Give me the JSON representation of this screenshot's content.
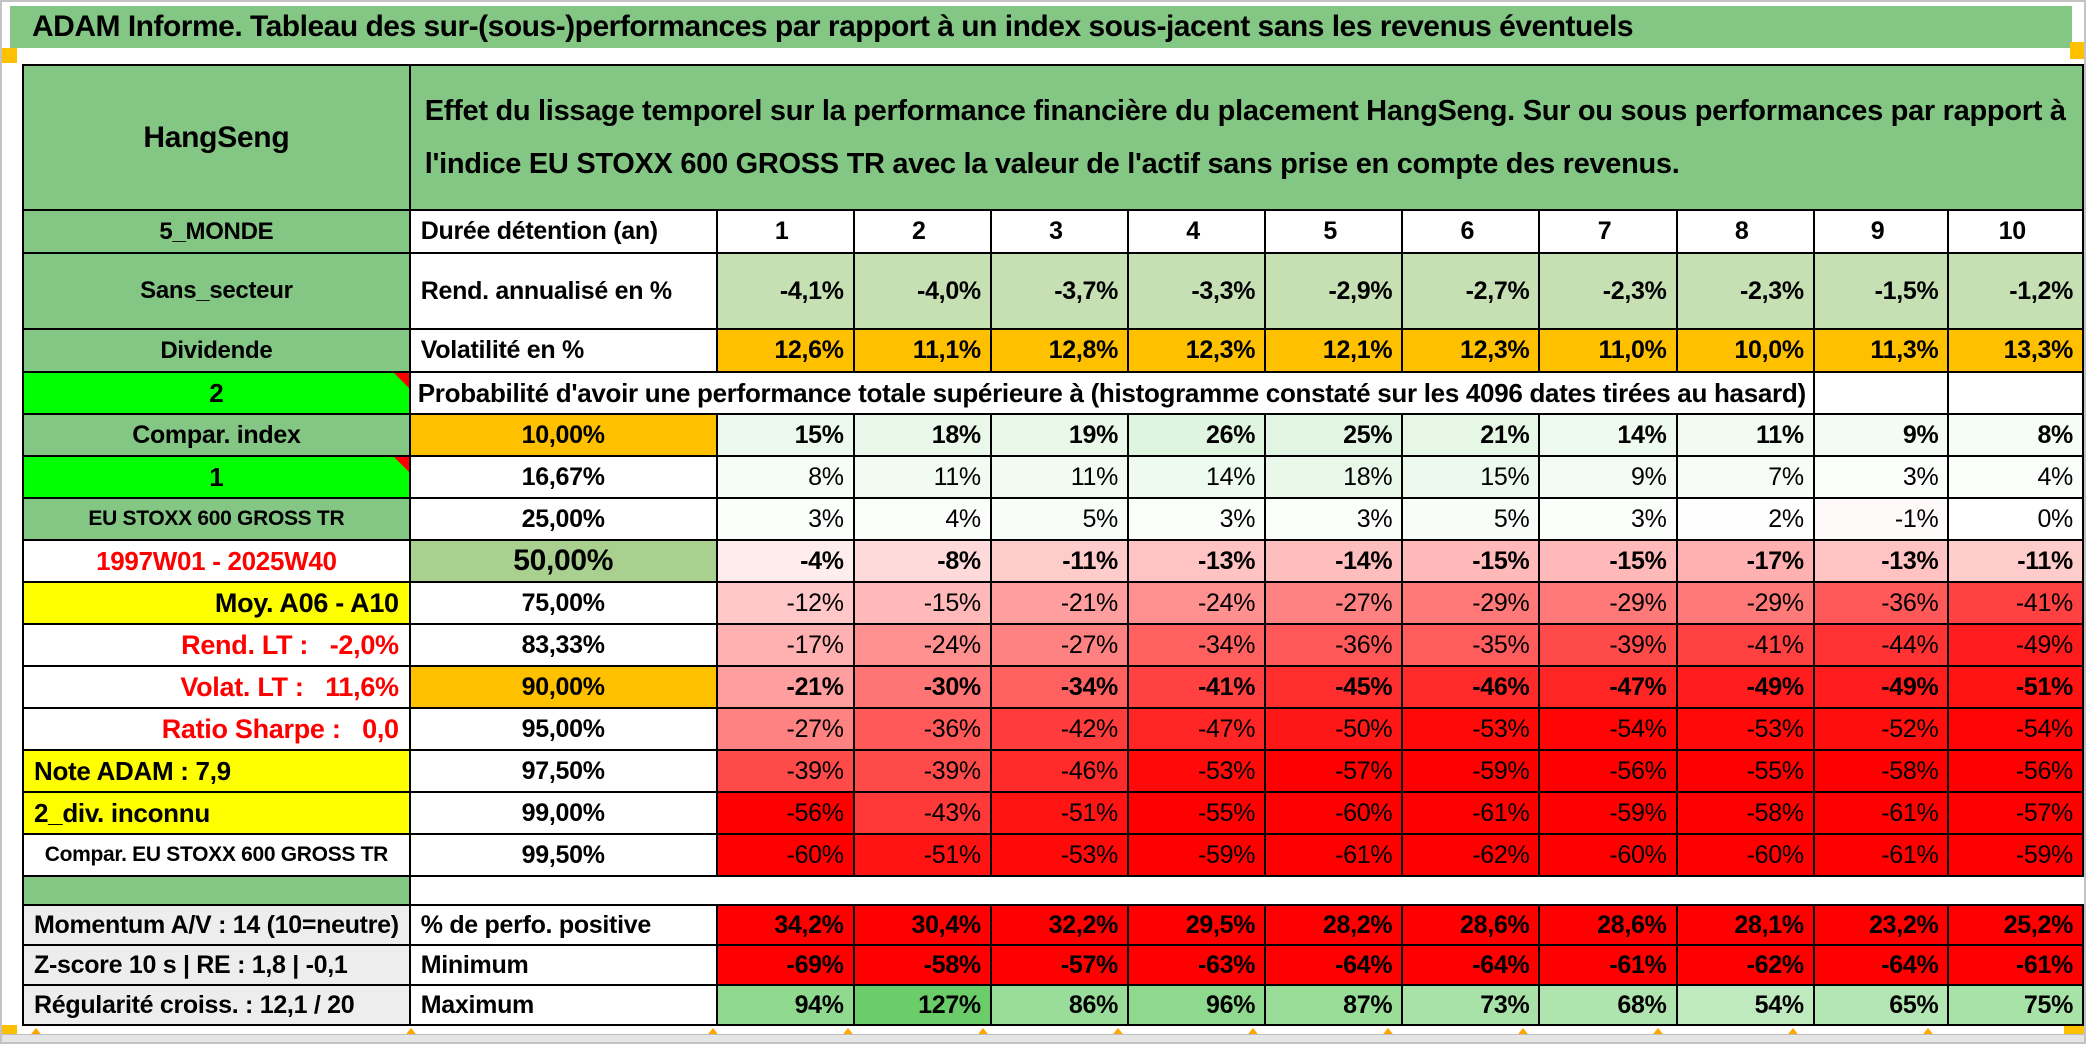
{
  "banner": {
    "title": "ADAM Informe. Tableau des sur-(sous-)performances par rapport à un index sous-jacent sans les revenus éventuels"
  },
  "header": {
    "asset": "HangSeng",
    "description": "Effet du lissage temporel sur la performance financière du placement HangSeng. Sur ou sous performances par rapport à l'indice EU STOXX 600 GROSS TR avec la valeur de l'actif sans prise en compte des revenus."
  },
  "probability_note": "Probabilité d'avoir une performance totale supérieure à (histogramme constaté sur les 4096 dates tirées au hasard)",
  "years": [
    "1",
    "2",
    "3",
    "4",
    "5",
    "6",
    "7",
    "8",
    "9",
    "10"
  ],
  "colors": {
    "band_green": "#84C784",
    "bright_green": "#00FF00",
    "mid_green": "#A9D08E",
    "light_green": "#C6E0B4",
    "orange": "#FFC000",
    "yellow": "#FFFF00",
    "gray_label": "#EDEDED",
    "red_text": "#FF0000",
    "heat_red": "#FF0000",
    "heat_green": "#66CC66"
  },
  "rows": [
    {
      "left": {
        "text": "5_MONDE",
        "bg": "#84C784",
        "size": 24
      },
      "label": {
        "text": "Durée détention (an)",
        "align": "left"
      },
      "type": "years"
    },
    {
      "left": {
        "text": "Sans_secteur",
        "bg": "#84C784",
        "size": 24
      },
      "label": {
        "text": "Rend. annualisé en %",
        "align": "left"
      },
      "type": "flat",
      "flat": "#C6E0B4",
      "bold": true,
      "values": [
        "-4,1%",
        "-4,0%",
        "-3,7%",
        "-3,3%",
        "-2,9%",
        "-2,7%",
        "-2,3%",
        "-2,3%",
        "-1,5%",
        "-1,2%"
      ]
    },
    {
      "left": {
        "text": "Dividende",
        "bg": "#84C784",
        "size": 24
      },
      "label": {
        "text": "Volatilité en %",
        "align": "left"
      },
      "type": "flat",
      "flat": "#FFC000",
      "bold": true,
      "values": [
        "12,6%",
        "11,1%",
        "12,8%",
        "12,3%",
        "12,1%",
        "12,3%",
        "11,0%",
        "10,0%",
        "11,3%",
        "13,3%"
      ]
    },
    {
      "left": {
        "text": "2",
        "bg": "#00FF00",
        "size": 26,
        "tri": true
      },
      "type": "note"
    },
    {
      "left": {
        "text": "Compar. index",
        "bg": "#84C784",
        "size": 25
      },
      "label": {
        "text": "10,00%",
        "bg": "#FFC000"
      },
      "type": "heat",
      "bold": true,
      "values": [
        "15%",
        "18%",
        "19%",
        "26%",
        "25%",
        "21%",
        "14%",
        "11%",
        "9%",
        "8%"
      ]
    },
    {
      "left": {
        "text": "1",
        "bg": "#00FF00",
        "size": 26,
        "tri": true
      },
      "label": {
        "text": "16,67%"
      },
      "type": "heat",
      "values": [
        "8%",
        "11%",
        "11%",
        "14%",
        "18%",
        "15%",
        "9%",
        "7%",
        "3%",
        "4%"
      ]
    },
    {
      "left": {
        "text": "EU STOXX 600 GROSS TR",
        "bg": "#84C784",
        "size": 21
      },
      "label": {
        "text": "25,00%"
      },
      "type": "heat",
      "values": [
        "3%",
        "4%",
        "5%",
        "3%",
        "3%",
        "5%",
        "3%",
        "2%",
        "-1%",
        "0%"
      ]
    },
    {
      "left": {
        "text": "1997W01 - 2025W40",
        "color": "#FF0000",
        "size": 26
      },
      "label": {
        "text": "50,00%",
        "bg": "#A9D08E",
        "size": 30
      },
      "type": "heat",
      "bold": true,
      "values": [
        "-4%",
        "-8%",
        "-11%",
        "-13%",
        "-14%",
        "-15%",
        "-15%",
        "-17%",
        "-13%",
        "-11%"
      ]
    },
    {
      "left": {
        "text": "Moy. A06 - A10",
        "bg": "#FFFF00",
        "align": "right",
        "size": 27
      },
      "label": {
        "text": "75,00%"
      },
      "type": "heat",
      "values": [
        "-12%",
        "-15%",
        "-21%",
        "-24%",
        "-27%",
        "-29%",
        "-29%",
        "-29%",
        "-36%",
        "-41%"
      ]
    },
    {
      "left": {
        "text": "Rend. LT :   -2,0%",
        "color": "#FF0000",
        "align": "right",
        "size": 27
      },
      "label": {
        "text": "83,33%"
      },
      "type": "heat",
      "values": [
        "-17%",
        "-24%",
        "-27%",
        "-34%",
        "-36%",
        "-35%",
        "-39%",
        "-41%",
        "-44%",
        "-49%"
      ]
    },
    {
      "left": {
        "text": "Volat. LT :   11,6%",
        "color": "#FF0000",
        "align": "right",
        "size": 27
      },
      "label": {
        "text": "90,00%",
        "bg": "#FFC000"
      },
      "type": "heat",
      "bold": true,
      "values": [
        "-21%",
        "-30%",
        "-34%",
        "-41%",
        "-45%",
        "-46%",
        "-47%",
        "-49%",
        "-49%",
        "-51%"
      ]
    },
    {
      "left": {
        "text": "Ratio Sharpe :   0,0",
        "color": "#FF0000",
        "align": "right",
        "size": 27
      },
      "label": {
        "text": "95,00%"
      },
      "type": "heat",
      "values": [
        "-27%",
        "-36%",
        "-42%",
        "-47%",
        "-50%",
        "-53%",
        "-54%",
        "-53%",
        "-52%",
        "-54%"
      ]
    },
    {
      "left": {
        "text": "Note ADAM : 7,9",
        "bg": "#FFFF00",
        "align": "left",
        "size": 26
      },
      "label": {
        "text": "97,50%"
      },
      "type": "heat",
      "values": [
        "-39%",
        "-39%",
        "-46%",
        "-53%",
        "-57%",
        "-59%",
        "-56%",
        "-55%",
        "-58%",
        "-56%"
      ]
    },
    {
      "left": {
        "text": "2_div. inconnu",
        "bg": "#FFFF00",
        "align": "left",
        "size": 26
      },
      "label": {
        "text": "99,00%"
      },
      "type": "heat",
      "values": [
        "-56%",
        "-43%",
        "-51%",
        "-55%",
        "-60%",
        "-61%",
        "-59%",
        "-58%",
        "-61%",
        "-57%"
      ]
    },
    {
      "left": {
        "text": "Compar. EU STOXX 600 GROSS TR",
        "size": 21
      },
      "label": {
        "text": "99,50%"
      },
      "type": "heat",
      "values": [
        "-60%",
        "-51%",
        "-53%",
        "-59%",
        "-61%",
        "-62%",
        "-60%",
        "-60%",
        "-61%",
        "-59%"
      ]
    },
    {
      "left": {
        "text": "",
        "bg": "#84C784"
      },
      "type": "spacer"
    },
    {
      "left": {
        "text": "Momentum A/V : 14 (10=neutre)",
        "bg": "#EDEDED",
        "align": "left",
        "size": 25
      },
      "label": {
        "text": "% de perfo. positive",
        "align": "left"
      },
      "type": "flat",
      "flat": "#FF0000",
      "bold": true,
      "values": [
        "34,2%",
        "30,4%",
        "32,2%",
        "29,5%",
        "28,2%",
        "28,6%",
        "28,6%",
        "28,1%",
        "23,2%",
        "25,2%"
      ]
    },
    {
      "left": {
        "text": "Z-score 10 s | RE : 1,8 | -0,1",
        "bg": "#EDEDED",
        "align": "left",
        "size": 25
      },
      "label": {
        "text": "Minimum",
        "align": "left"
      },
      "type": "heat",
      "bold": true,
      "values": [
        "-69%",
        "-58%",
        "-57%",
        "-63%",
        "-64%",
        "-64%",
        "-61%",
        "-62%",
        "-64%",
        "-61%"
      ]
    },
    {
      "left": {
        "text": "Régularité croiss. : 12,1 / 20",
        "bg": "#EDEDED",
        "align": "left",
        "size": 25
      },
      "label": {
        "text": "Maximum",
        "align": "left"
      },
      "type": "heat",
      "bold": true,
      "values": [
        "94%",
        "127%",
        "86%",
        "96%",
        "87%",
        "73%",
        "68%",
        "54%",
        "65%",
        "75%"
      ]
    }
  ]
}
